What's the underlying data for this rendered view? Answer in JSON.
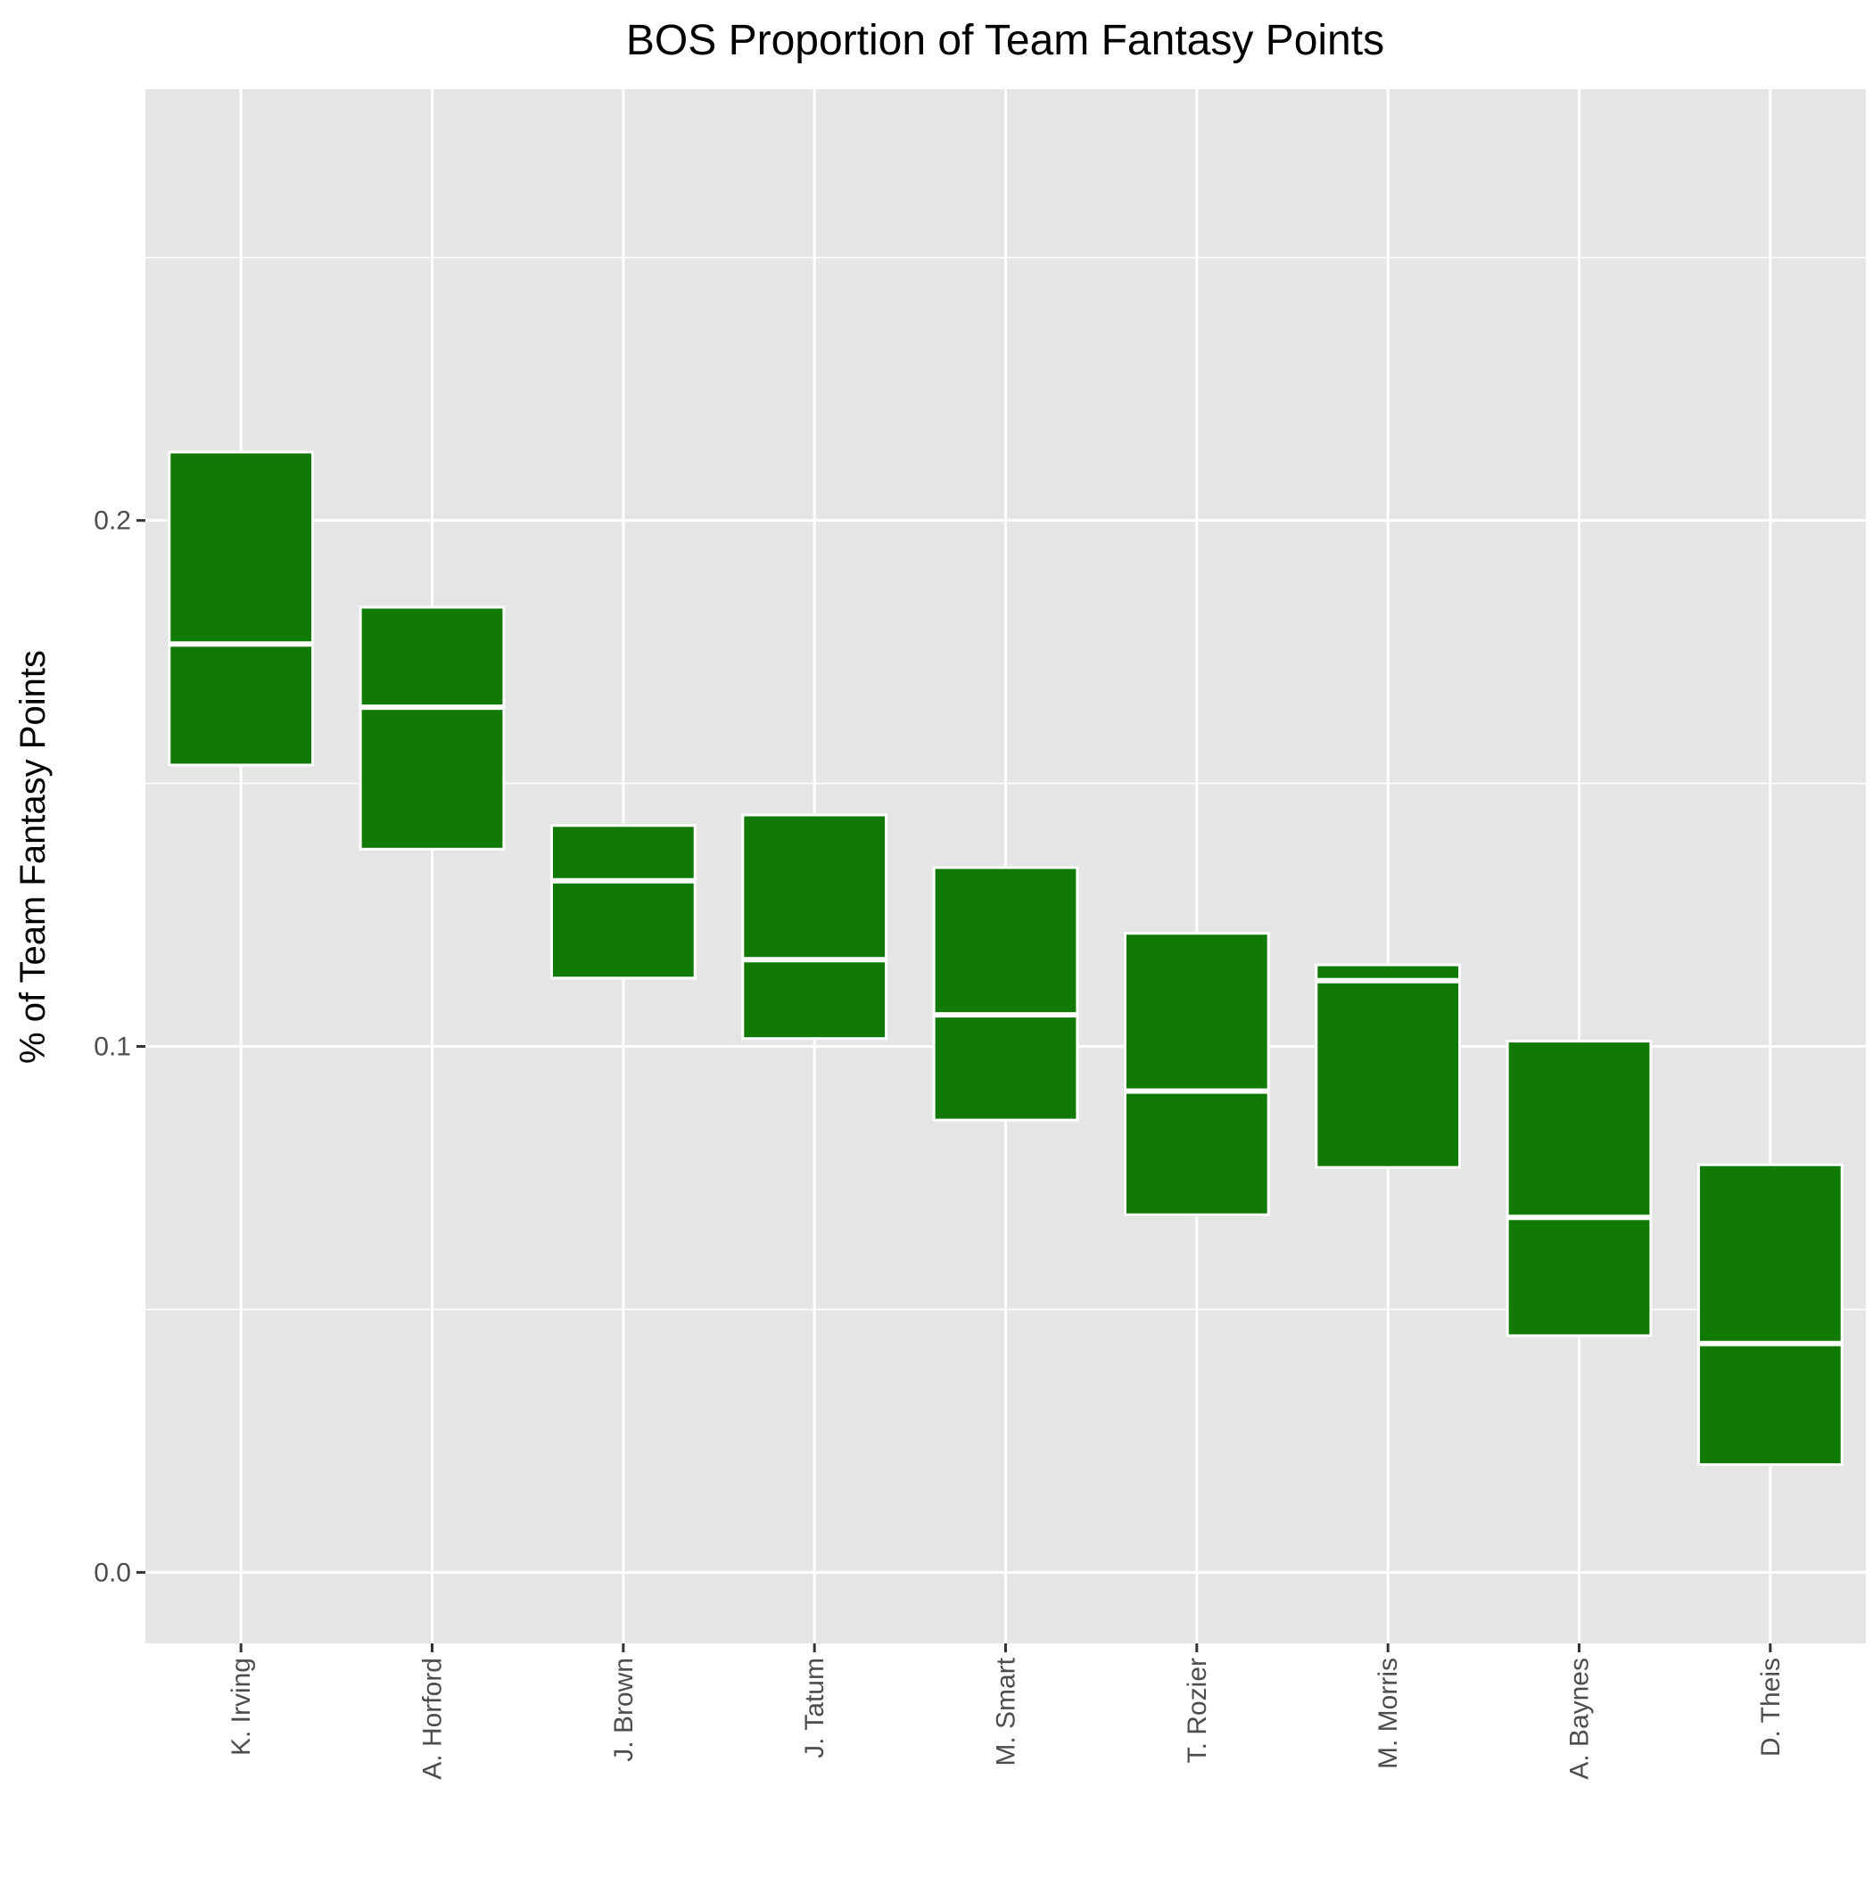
{
  "colors": {
    "panel_background": "#E5E5E5",
    "grid": "#FFFFFF",
    "box_fill": "#117A05",
    "box_outline": "#FFFFFF",
    "tick": "#333333",
    "tick_label": "#4D4D4D"
  },
  "chart_data": {
    "type": "boxplot",
    "title": "BOS Proportion of Team Fantasy Points",
    "xlabel": "",
    "ylabel": "% of Team Fantasy Points",
    "ylim": [
      -0.0135,
      0.282
    ],
    "y_ticks": [
      0.0,
      0.1,
      0.2
    ],
    "y_tick_labels": [
      "0.0",
      "0.1",
      "0.2"
    ],
    "y_minor_ticks": [
      0.05,
      0.15,
      0.25
    ],
    "x_tick_label_rotation": 90,
    "grid": true,
    "legend": "none",
    "categories": [
      "K. Irving",
      "A. Horford",
      "J. Brown",
      "J. Tatum",
      "M. Smart",
      "T. Rozier",
      "M. Morris",
      "A. Baynes",
      "D. Theis"
    ],
    "boxes": [
      {
        "name": "K. Irving",
        "q1": 0.1535,
        "median": 0.1765,
        "q3": 0.213
      },
      {
        "name": "A. Horford",
        "q1": 0.1375,
        "median": 0.1645,
        "q3": 0.1835
      },
      {
        "name": "J. Brown",
        "q1": 0.113,
        "median": 0.1315,
        "q3": 0.142
      },
      {
        "name": "J. Tatum",
        "q1": 0.1015,
        "median": 0.1165,
        "q3": 0.144
      },
      {
        "name": "M. Smart",
        "q1": 0.086,
        "median": 0.106,
        "q3": 0.134
      },
      {
        "name": "T. Rozier",
        "q1": 0.068,
        "median": 0.0915,
        "q3": 0.1215
      },
      {
        "name": "M. Morris",
        "q1": 0.077,
        "median": 0.1125,
        "q3": 0.1155
      },
      {
        "name": "A. Baynes",
        "q1": 0.045,
        "median": 0.0675,
        "q3": 0.101
      },
      {
        "name": "D. Theis",
        "q1": 0.0205,
        "median": 0.0435,
        "q3": 0.0775
      }
    ]
  }
}
